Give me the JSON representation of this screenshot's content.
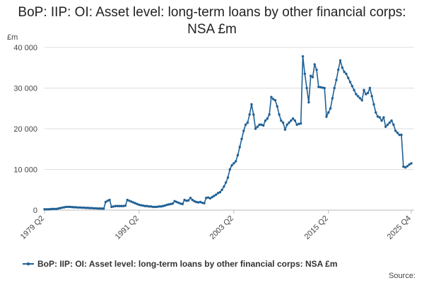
{
  "chart_data": {
    "type": "line",
    "title": "BoP: IIP: OI: Asset level: long-term loans by other financial corps: NSA £m",
    "y_unit": "£m",
    "source": "Source:",
    "categories": [
      "1979 Q2",
      null,
      null,
      null,
      null,
      null,
      null,
      null,
      null,
      null,
      null,
      null,
      null,
      null,
      null,
      null,
      null,
      null,
      null,
      null,
      null,
      null,
      null,
      null,
      null,
      null,
      null,
      null,
      null,
      null,
      null,
      null,
      null,
      null,
      null,
      null,
      null,
      null,
      null,
      null,
      null,
      null,
      null,
      null,
      null,
      null,
      null,
      null,
      "1991 Q2",
      null,
      null,
      null,
      null,
      null,
      null,
      null,
      null,
      null,
      null,
      null,
      null,
      null,
      null,
      null,
      null,
      null,
      null,
      null,
      null,
      null,
      null,
      null,
      null,
      null,
      null,
      null,
      null,
      null,
      null,
      null,
      null,
      null,
      null,
      null,
      null,
      null,
      null,
      null,
      null,
      null,
      null,
      null,
      null,
      null,
      null,
      null,
      "2003 Q2",
      null,
      null,
      null,
      null,
      null,
      null,
      null,
      null,
      null,
      null,
      null,
      null,
      null,
      null,
      null,
      null,
      null,
      null,
      null,
      null,
      null,
      null,
      null,
      null,
      null,
      null,
      null,
      null,
      null,
      null,
      null,
      null,
      null,
      null,
      null,
      null,
      null,
      null,
      null,
      null,
      null,
      null,
      null,
      null,
      null,
      null,
      null,
      "2015 Q2",
      null,
      null,
      null,
      null,
      null,
      null,
      null,
      null,
      null,
      null,
      null,
      null,
      null,
      null,
      null,
      null,
      null,
      null,
      null,
      null,
      null,
      null,
      null,
      null,
      null,
      null,
      null,
      null,
      null,
      null,
      null,
      null,
      null,
      null,
      null,
      null,
      null,
      null,
      null,
      null,
      null,
      "2025 Q4"
    ],
    "series": [
      {
        "name": "BoP: IIP: OI: Asset level: long-term loans by other financial corps: NSA £m",
        "color": "#206095",
        "values": [
          200,
          200,
          200,
          250,
          300,
          300,
          300,
          400,
          500,
          600,
          700,
          800,
          800,
          800,
          750,
          700,
          700,
          650,
          650,
          600,
          600,
          550,
          550,
          500,
          500,
          450,
          450,
          400,
          400,
          400,
          350,
          2000,
          2300,
          2500,
          800,
          900,
          1000,
          1000,
          1000,
          1000,
          1000,
          1100,
          2500,
          2300,
          2100,
          1900,
          1700,
          1500,
          1300,
          1200,
          1100,
          1000,
          1000,
          900,
          900,
          800,
          800,
          800,
          900,
          900,
          1000,
          1100,
          1300,
          1400,
          1500,
          1600,
          2200,
          2000,
          1800,
          1600,
          1500,
          2500,
          2300,
          2400,
          3000,
          2500,
          2200,
          2000,
          1900,
          2000,
          1800,
          1700,
          3000,
          3100,
          2900,
          3200,
          3500,
          3800,
          4200,
          4400,
          5000,
          5800,
          6800,
          8000,
          10000,
          11000,
          11500,
          12000,
          13500,
          15500,
          17500,
          19500,
          21000,
          21500,
          23500,
          26000,
          23500,
          20000,
          20500,
          21000,
          21000,
          20800,
          22000,
          22500,
          23500,
          27800,
          27300,
          27000,
          25500,
          23500,
          22000,
          21500,
          19800,
          21000,
          21500,
          22000,
          22500,
          22000,
          21000,
          21200,
          21300,
          37800,
          33500,
          30000,
          26500,
          33000,
          32700,
          35800,
          34500,
          30300,
          30200,
          30100,
          30000,
          23000,
          24000,
          25000,
          27500,
          30000,
          32000,
          34500,
          36800,
          35000,
          34000,
          33500,
          32500,
          31500,
          30500,
          29500,
          28500,
          28000,
          27500,
          27000,
          29500,
          28500,
          28800,
          30000,
          28000,
          26000,
          24000,
          23000,
          22800,
          22000,
          22800,
          20500,
          21000,
          21500,
          22000,
          21000,
          19500,
          19000,
          18500,
          18500,
          10700,
          10500,
          10800,
          11200,
          11500
        ]
      }
    ],
    "ylim": [
      0,
      42000
    ],
    "yticks": [
      0,
      {
        "value": 10000,
        "label": "10 000"
      },
      {
        "value": 20000,
        "label": "20 000"
      },
      {
        "value": 30000,
        "label": "30 000"
      },
      {
        "value": 40000,
        "label": "40 000"
      }
    ],
    "grid": true,
    "legend": "bottom"
  }
}
